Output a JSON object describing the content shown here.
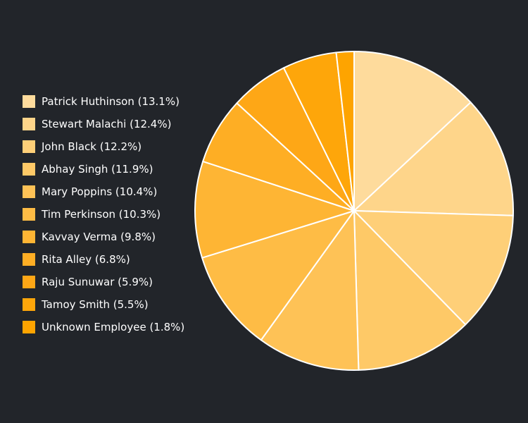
{
  "chart_data": {
    "type": "pie",
    "title": "",
    "legend_position": "left",
    "slices": [
      {
        "label": "Patrick Huthinson (13.1%)",
        "name": "Patrick Huthinson",
        "value": 13.1,
        "color": "#fedb9c"
      },
      {
        "label": "Stewart Malachi (12.4%)",
        "name": "Stewart Malachi",
        "value": 12.4,
        "color": "#fed58a"
      },
      {
        "label": "John Black (12.2%)",
        "name": "John Black",
        "value": 12.2,
        "color": "#fecf78"
      },
      {
        "label": "Abhay Singh (11.9%)",
        "name": "Abhay Singh",
        "value": 11.9,
        "color": "#fec967"
      },
      {
        "label": "Mary Poppins (10.4%)",
        "name": "Mary Poppins",
        "value": 10.4,
        "color": "#fec256"
      },
      {
        "label": "Tim Perkinson (10.3%)",
        "name": "Tim Perkinson",
        "value": 10.3,
        "color": "#febc45"
      },
      {
        "label": "Kavvay Verma (9.8%)",
        "name": "Kavvay Verma",
        "value": 9.8,
        "color": "#feb534"
      },
      {
        "label": "Rita Alley (6.8%)",
        "name": "Rita Alley",
        "value": 6.8,
        "color": "#feae24"
      },
      {
        "label": "Raju Sunuwar (5.9%)",
        "name": "Raju Sunuwar",
        "value": 5.9,
        "color": "#fea716"
      },
      {
        "label": "Tamoy Smith (5.5%)",
        "name": "Tamoy Smith",
        "value": 5.5,
        "color": "#fea60a"
      },
      {
        "label": "Unknown Employee (1.8%)",
        "name": "Unknown Employee",
        "value": 1.8,
        "color": "#fea400"
      }
    ]
  }
}
